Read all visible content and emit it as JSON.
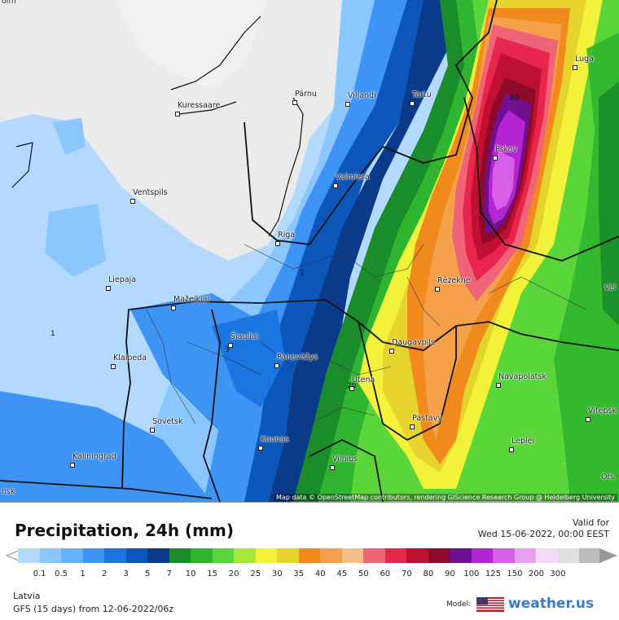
{
  "header": {
    "title": "Precipitation, 24h (mm)",
    "valid_label": "Valid for",
    "valid_value": "Wed 15-06-2022, 00:00 EEST"
  },
  "footer": {
    "region": "Latvia",
    "model_run": "GFS (15 days) from  12-06-2022/06z",
    "model_label": "Model:",
    "brand": "weather.us"
  },
  "map": {
    "attribution": "Map data © OpenStreetMap contributors, rendering GIScience Research Group @ Heidelberg University",
    "cities": [
      {
        "name": "Kuressaare"
      },
      {
        "name": "Pärnu"
      },
      {
        "name": "Viljandi"
      },
      {
        "name": "Tartu"
      },
      {
        "name": "Luga"
      },
      {
        "name": "Pskov"
      },
      {
        "name": "Valmiera"
      },
      {
        "name": "Ventspils"
      },
      {
        "name": "Riga"
      },
      {
        "name": "Liepaja"
      },
      {
        "name": "Rēzekne"
      },
      {
        "name": "Mažeikiai"
      },
      {
        "name": "Šiauliai"
      },
      {
        "name": "Daugavpils"
      },
      {
        "name": "Klaipeda"
      },
      {
        "name": "Panevėžys"
      },
      {
        "name": "Utena"
      },
      {
        "name": "Navapolatsk"
      },
      {
        "name": "Sovetsk"
      },
      {
        "name": "Pastavy"
      },
      {
        "name": "Kaunas"
      },
      {
        "name": "Kaliningrad"
      },
      {
        "name": "Vilnius"
      },
      {
        "name": "Lepiel"
      },
      {
        "name": "Vitebsk"
      },
      {
        "name": "Vel"
      },
      {
        "name": "Ors"
      },
      {
        "name": "nsk"
      },
      {
        "name": "olm"
      }
    ],
    "contour_labels": [
      "1",
      "1",
      "3",
      "20",
      "80"
    ]
  },
  "scale": {
    "ticks": [
      "0.1",
      "0.5",
      "1",
      "2",
      "3",
      "5",
      "7",
      "10",
      "15",
      "20",
      "25",
      "30",
      "35",
      "40",
      "45",
      "50",
      "60",
      "70",
      "80",
      "90",
      "100",
      "125",
      "150",
      "200",
      "300"
    ],
    "colors": [
      "#b3d9ff",
      "#8cc6ff",
      "#66b2ff",
      "#3d94f5",
      "#1a75e0",
      "#0b56b8",
      "#0a3a8a",
      "#1a8c2a",
      "#2fb52f",
      "#5ad63a",
      "#a6e83a",
      "#f2f23a",
      "#e6d32e",
      "#f08a1c",
      "#f5a04a",
      "#f7bd8a",
      "#f06478",
      "#e8254a",
      "#c01030",
      "#8e0a2a",
      "#6e1090",
      "#b325d0",
      "#d860e8",
      "#e8a0f0",
      "#f4dcf8",
      "#e0e0e0",
      "#bcbcbc"
    ]
  }
}
